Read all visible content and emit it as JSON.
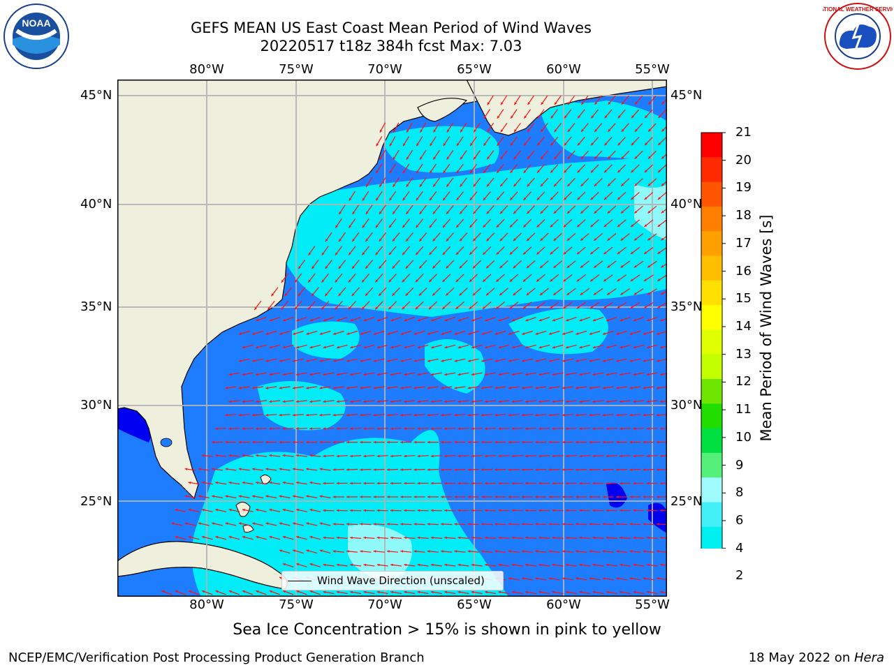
{
  "title": {
    "line1": "GEFS MEAN US East Coast Mean Period of Wind Waves",
    "line2": "20220517 t18z 384h fcst   Max: 7.03"
  },
  "map": {
    "lon_labels": [
      "80°W",
      "75°W",
      "70°W",
      "65°W",
      "60°W",
      "55°W"
    ],
    "lat_labels": [
      "45°N",
      "40°N",
      "35°N",
      "30°N",
      "25°N"
    ],
    "extent": {
      "lon_min": -85,
      "lon_max": -54.3,
      "lat_min": 20.3,
      "lat_max": 46.3
    },
    "colors": {
      "land": "#efefdd",
      "ocean_low": "#1e7cff",
      "ocean_mid": "#00ecf6",
      "ocean_high": "#a0fcfc",
      "ocean_min": "#0000f0",
      "arrow": "#ff1010"
    }
  },
  "legend": {
    "label": "Wind Wave Direction (unscaled)"
  },
  "colorbar": {
    "title": "Mean Period of Wind Waves [s]",
    "ticks": [
      "21",
      "20",
      "19",
      "18",
      "17",
      "16",
      "15",
      "14",
      "13",
      "12",
      "11",
      "10",
      "9",
      "8",
      "6",
      "4",
      "2"
    ],
    "colors": [
      "#ff0000",
      "#ff2a00",
      "#ff5500",
      "#ff7f00",
      "#ff9f00",
      "#ffbf00",
      "#ffe000",
      "#ffff00",
      "#e0ff00",
      "#c4ff00",
      "#6ee600",
      "#22dd00",
      "#00e040",
      "#55f07a",
      "#a0fcfc",
      "#44f0f8",
      "#00f0f0",
      "#1e7cff"
    ],
    "under_color": "#0000f0"
  },
  "note": "Sea Ice Concentration > 15% is shown in pink to yellow",
  "footer": {
    "left": "NCEP/EMC/Verification Post Processing Product Generation Branch",
    "date": "18 May 2022 on ",
    "machine": "Hera"
  },
  "logos": {
    "noaa": "NOAA",
    "nws": "NATIONAL WEATHER SERVICE"
  }
}
